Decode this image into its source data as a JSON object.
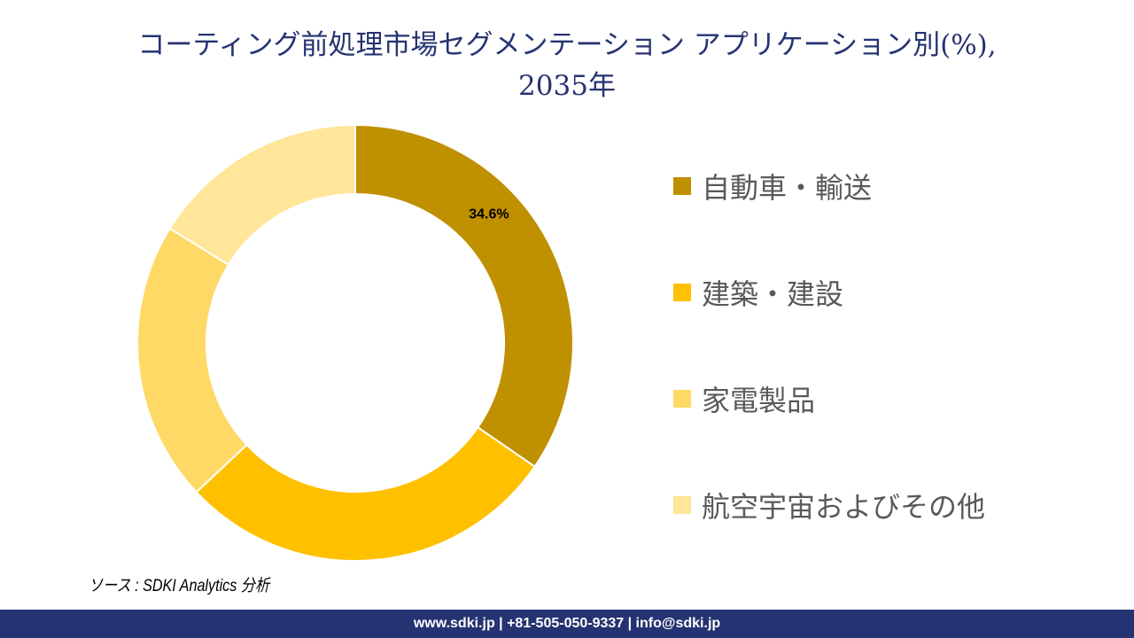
{
  "title_line1": "コーティング前処理市場セグメンテーション アプリケーション別(%),",
  "title_line2": "2035年",
  "chart_data": {
    "type": "pie",
    "variant": "donut",
    "categories": [
      "自動車・輸送",
      "建築・建設",
      "家電製品",
      "航空宇宙およびその他"
    ],
    "values": [
      34.6,
      28.4,
      20.8,
      16.2
    ],
    "colors": [
      "#BF9000",
      "#FFC000",
      "#FFD966",
      "#FFE699"
    ],
    "data_labels": [
      "34.6%",
      "",
      "",
      ""
    ],
    "legend_placement": "right"
  },
  "source": "ソース : SDKI Analytics 分析",
  "footer": "www.sdki.jp | +81-505-050-9337 | info@sdki.jp"
}
